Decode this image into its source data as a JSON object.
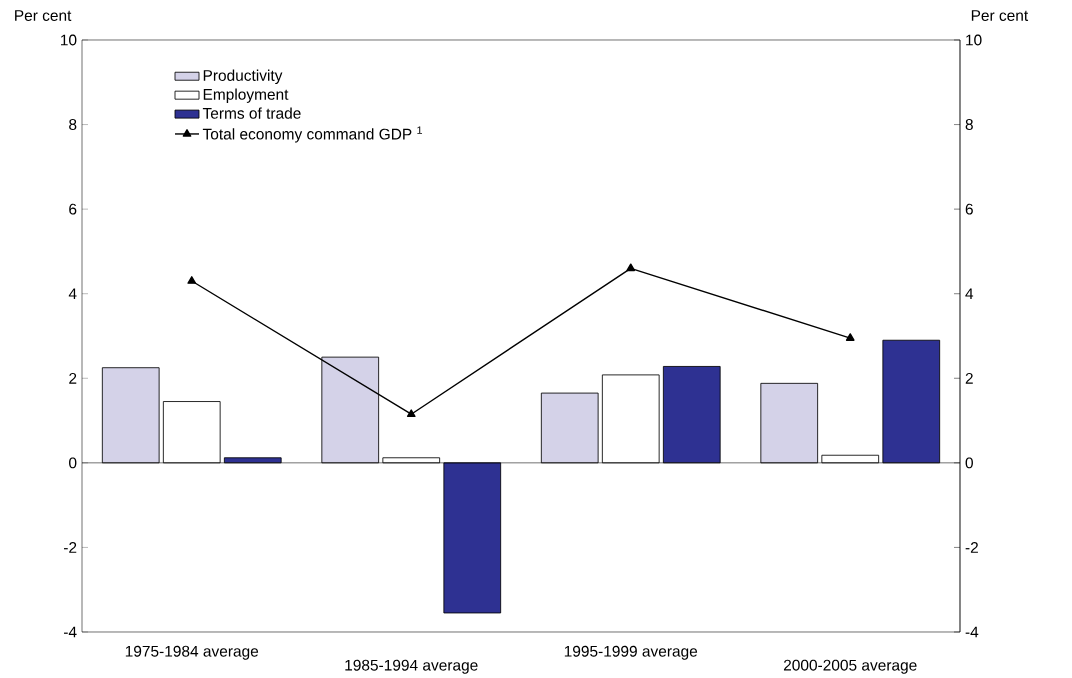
{
  "chart_data": {
    "type": "bar",
    "ylabel": "Per cent",
    "y2label": "Per cent",
    "categories": [
      "1975-1984 average",
      "1985-1994 average",
      "1995-1999 average",
      "2000-2005 average"
    ],
    "series": [
      {
        "name": "Productivity",
        "color": "#d4d2e8",
        "values": [
          2.25,
          2.5,
          1.65,
          1.88
        ]
      },
      {
        "name": "Employment",
        "color": "#ffffff",
        "values": [
          1.45,
          0.12,
          2.08,
          0.18
        ]
      },
      {
        "name": "Terms of trade",
        "color": "#2e3192",
        "values": [
          0.12,
          -3.55,
          2.28,
          2.9
        ]
      },
      {
        "name": "Total economy command GDP $^{1}$",
        "type": "line",
        "color": "#000000",
        "marker": "triangle",
        "values": [
          4.3,
          1.15,
          4.6,
          2.95
        ]
      }
    ],
    "ylim": [
      -4,
      10
    ],
    "yticks": [
      -4,
      -2,
      0,
      2,
      4,
      6,
      8,
      10
    ],
    "y2lim": [
      -4,
      10
    ],
    "y2ticks": [
      -4,
      -2,
      0,
      2,
      4,
      6,
      8,
      10
    ],
    "ref_lines": [
      {
        "axis": "y",
        "value": 0
      }
    ],
    "legend": "top left",
    "grid": false
  }
}
